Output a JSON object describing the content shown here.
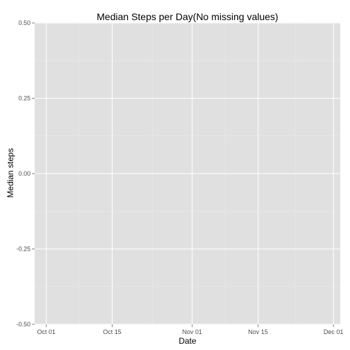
{
  "colors": {
    "panel_background": "#e0e0e0",
    "grid_major": "#ffffff",
    "grid_minor": "#ebebeb",
    "tick": "#7f7f7f",
    "tick_label": "#4d4d4d",
    "text": "#000000"
  },
  "chart_data": {
    "type": "line",
    "title": "Median Steps per Day(No missing values)",
    "xlabel": "Date",
    "ylabel": "Median steps",
    "x_ticks": [
      {
        "label": "Oct 01",
        "day": 0
      },
      {
        "label": "Oct 15",
        "day": 14
      },
      {
        "label": "Nov 01",
        "day": 31
      },
      {
        "label": "Nov 15",
        "day": 45
      },
      {
        "label": "Dec 01",
        "day": 61
      }
    ],
    "xlim_days": [
      -2.45,
      62.45
    ],
    "ylim": [
      -0.5,
      0.5
    ],
    "y_ticks": [
      {
        "label": "0.50",
        "value": 0.5
      },
      {
        "label": "0.25",
        "value": 0.25
      },
      {
        "label": "0.00",
        "value": 0.0
      },
      {
        "label": "-0.25",
        "value": -0.25
      },
      {
        "label": "-0.50",
        "value": -0.5
      }
    ],
    "series": [
      {
        "name": "median steps",
        "x_days": [],
        "values": []
      }
    ],
    "grid": true,
    "legend": "none"
  }
}
